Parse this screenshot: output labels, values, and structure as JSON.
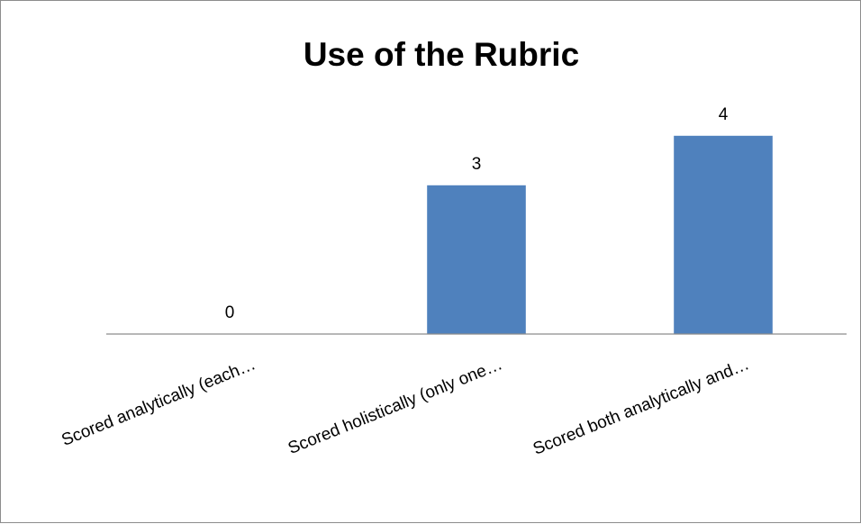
{
  "chart_data": {
    "type": "bar",
    "title": "Use of the Rubric",
    "xlabel": "",
    "ylabel": "",
    "categories": [
      "Scored analytically (each…",
      "Scored holistically (only one…",
      "Scored both analytically and…"
    ],
    "values": [
      0,
      3,
      4
    ],
    "data_labels": [
      "0",
      "3",
      "4"
    ],
    "ylim": [
      0,
      4.45
    ],
    "grid": false,
    "legend": "none",
    "bar_color": "#4F81BD",
    "axis_color": "#8C8C8C"
  }
}
